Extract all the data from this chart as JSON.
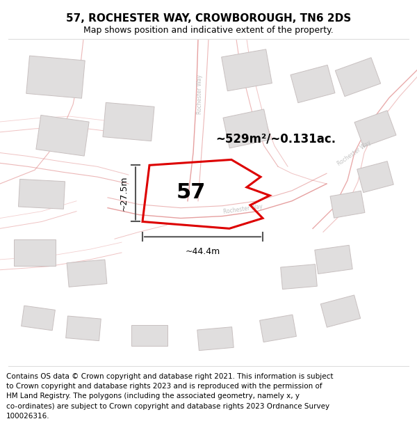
{
  "title": "57, ROCHESTER WAY, CROWBOROUGH, TN6 2DS",
  "subtitle": "Map shows position and indicative extent of the property.",
  "footer": "Contains OS data © Crown copyright and database right 2021. This information is subject\nto Crown copyright and database rights 2023 and is reproduced with the permission of\nHM Land Registry. The polygons (including the associated geometry, namely x, y\nco-ordinates) are subject to Crown copyright and database rights 2023 Ordnance Survey\n100026316.",
  "area_label": "~529m²/~0.131ac.",
  "width_label": "~44.4m",
  "height_label": "~27.5m",
  "number_label": "57",
  "map_bg": "#ffffff",
  "plot_edge_color": "#dd0000",
  "plot_fill": "none",
  "building_fill": "#e0dede",
  "building_edge": "#c8c0c0",
  "road_line_color": "#f0a0a0",
  "road_outline_color": "#e08888",
  "label_color": "#bbbbbb",
  "dim_color": "#555555",
  "title_fontsize": 11,
  "subtitle_fontsize": 9,
  "footer_fontsize": 7.5,
  "area_label_fontsize": 12,
  "number_fontsize": 22
}
